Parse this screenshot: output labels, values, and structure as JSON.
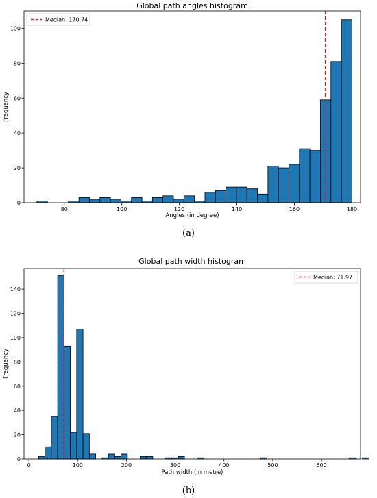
{
  "captions": {
    "a": "(a)",
    "b": "(b)"
  },
  "colors": {
    "bar": "#1f77b4",
    "edge": "#000000",
    "median": "#d62728"
  },
  "chart_data": [
    {
      "type": "bar",
      "title": "Global path angles histogram",
      "xlabel": "Angles (in degree)",
      "ylabel": "Frequency",
      "xlim": [
        66,
        183
      ],
      "ylim": [
        0,
        110
      ],
      "xticks": [
        80,
        100,
        120,
        140,
        160,
        180
      ],
      "yticks": [
        0,
        20,
        40,
        60,
        80,
        100
      ],
      "bin_start": 70.5,
      "bin_width": 3.65,
      "values": [
        1,
        0,
        0,
        1,
        3,
        2,
        3,
        2,
        1,
        3,
        1,
        3,
        4,
        2,
        4,
        1,
        6,
        7,
        9,
        9,
        8,
        5,
        21,
        20,
        22,
        31,
        30,
        59,
        81,
        105
      ],
      "median": 170.74,
      "legend": {
        "label": "Median: 170.74",
        "position": "top-left"
      }
    },
    {
      "type": "bar",
      "title": "Global path width histogram",
      "xlabel": "Path width (in metre)",
      "ylabel": "Frequency",
      "xlim": [
        -10,
        680
      ],
      "ylim": [
        0,
        157
      ],
      "xticks": [
        0,
        100,
        200,
        300,
        400,
        500,
        600
      ],
      "yticks": [
        0,
        20,
        40,
        60,
        80,
        100,
        120,
        140
      ],
      "bin_start": 20,
      "bin_width": 13,
      "values": [
        2,
        10,
        35,
        151,
        93,
        22,
        107,
        21,
        4,
        0,
        1,
        4,
        2,
        4,
        0,
        0,
        2,
        2,
        0,
        0,
        1,
        1,
        2,
        0,
        0,
        1,
        0,
        0,
        0,
        0,
        0,
        0,
        0,
        0,
        0,
        1,
        0,
        0,
        0,
        0,
        0,
        0,
        0,
        0,
        0,
        0,
        0,
        0,
        0,
        1,
        0,
        1
      ],
      "median": 71.97,
      "legend": {
        "label": "Median: 71.97",
        "position": "top-right"
      }
    }
  ]
}
